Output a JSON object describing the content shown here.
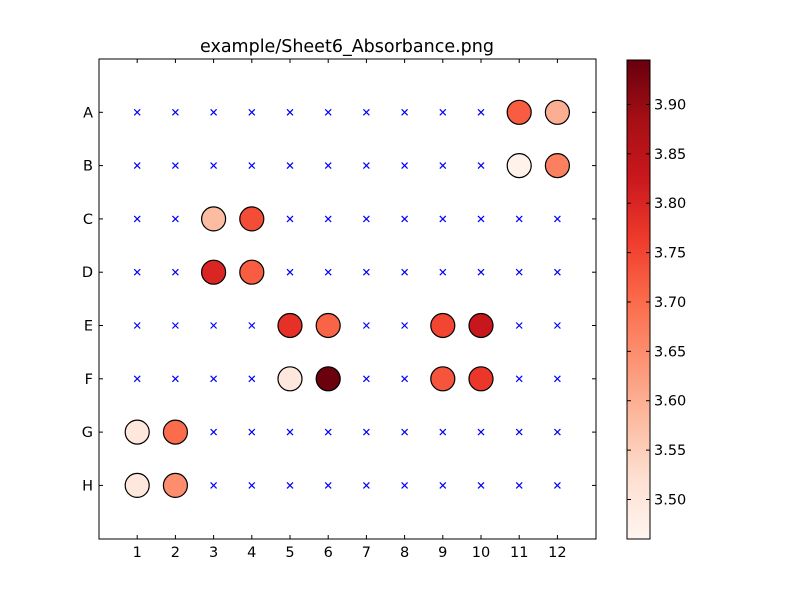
{
  "chart_data": {
    "type": "scatter",
    "title": "example/Sheet6_Absorbance.png",
    "xlabel": "",
    "ylabel": "",
    "x_categories": [
      "1",
      "2",
      "3",
      "4",
      "5",
      "6",
      "7",
      "8",
      "9",
      "10",
      "11",
      "12"
    ],
    "y_categories": [
      "A",
      "B",
      "C",
      "D",
      "E",
      "F",
      "G",
      "H"
    ],
    "empty_marker": "x",
    "empty_marker_color": "#0000ff",
    "grid": false,
    "points": [
      {
        "col": 11,
        "row": "A",
        "value": 3.72
      },
      {
        "col": 12,
        "row": "A",
        "value": 3.6
      },
      {
        "col": 11,
        "row": "B",
        "value": 3.47
      },
      {
        "col": 12,
        "row": "B",
        "value": 3.67
      },
      {
        "col": 3,
        "row": "C",
        "value": 3.58
      },
      {
        "col": 4,
        "row": "C",
        "value": 3.74
      },
      {
        "col": 3,
        "row": "D",
        "value": 3.8
      },
      {
        "col": 4,
        "row": "D",
        "value": 3.72
      },
      {
        "col": 5,
        "row": "E",
        "value": 3.78
      },
      {
        "col": 6,
        "row": "E",
        "value": 3.71
      },
      {
        "col": 9,
        "row": "E",
        "value": 3.75
      },
      {
        "col": 10,
        "row": "E",
        "value": 3.83
      },
      {
        "col": 5,
        "row": "F",
        "value": 3.5
      },
      {
        "col": 6,
        "row": "F",
        "value": 3.94
      },
      {
        "col": 9,
        "row": "F",
        "value": 3.73
      },
      {
        "col": 10,
        "row": "F",
        "value": 3.77
      },
      {
        "col": 1,
        "row": "G",
        "value": 3.5
      },
      {
        "col": 2,
        "row": "G",
        "value": 3.7
      },
      {
        "col": 1,
        "row": "H",
        "value": 3.5
      },
      {
        "col": 2,
        "row": "H",
        "value": 3.65
      }
    ],
    "colorbar": {
      "colormap": "Reds",
      "min": 3.46,
      "max": 3.945,
      "ticks": [
        3.5,
        3.55,
        3.6,
        3.65,
        3.7,
        3.75,
        3.8,
        3.85,
        3.9
      ],
      "tick_labels": [
        "3.50",
        "3.55",
        "3.60",
        "3.65",
        "3.70",
        "3.75",
        "3.80",
        "3.85",
        "3.90"
      ]
    }
  }
}
